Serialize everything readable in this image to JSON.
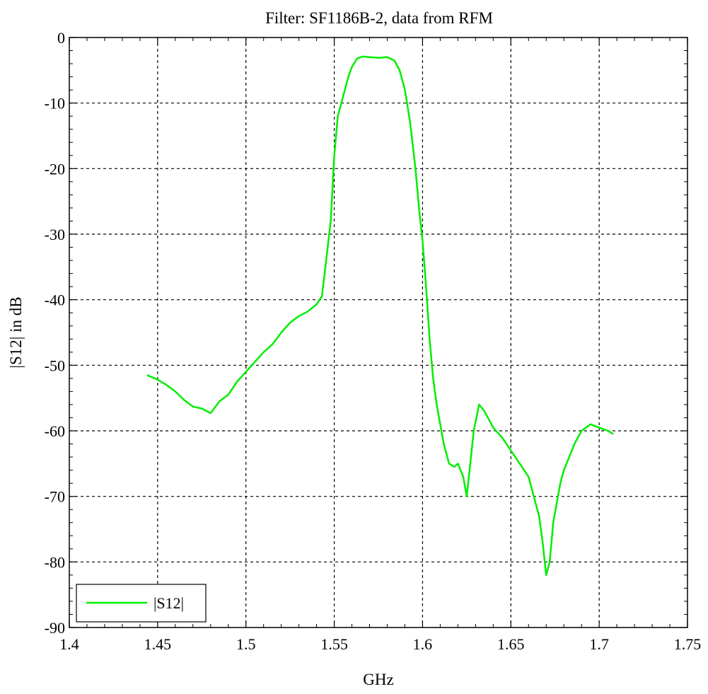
{
  "chart_data": {
    "type": "line",
    "title": "Filter: SF1186B-2, data from RFM",
    "xlabel": "GHz",
    "ylabel": "|S12| in dB",
    "xlim": [
      1.4,
      1.75
    ],
    "ylim": [
      -90,
      0
    ],
    "x_ticks": [
      1.4,
      1.45,
      1.5,
      1.55,
      1.6,
      1.65,
      1.7,
      1.75
    ],
    "x_tick_labels": [
      "1.4",
      "1.45",
      "1.5",
      "1.55",
      "1.6",
      "1.65",
      "1.7",
      "1.75"
    ],
    "y_ticks": [
      0,
      -10,
      -20,
      -30,
      -40,
      -50,
      -60,
      -70,
      -80,
      -90
    ],
    "y_tick_labels": [
      "0",
      "-10",
      "-20",
      "-30",
      "-40",
      "-50",
      "-60",
      "-70",
      "-80",
      "-90"
    ],
    "grid": true,
    "legend_position": "bottom-left",
    "series": [
      {
        "name": "|S12|",
        "color": "#00ee00",
        "x": [
          1.444,
          1.45,
          1.455,
          1.46,
          1.465,
          1.47,
          1.475,
          1.48,
          1.485,
          1.49,
          1.495,
          1.5,
          1.505,
          1.51,
          1.515,
          1.52,
          1.525,
          1.53,
          1.535,
          1.54,
          1.543,
          1.545,
          1.548,
          1.55,
          1.552,
          1.555,
          1.558,
          1.56,
          1.563,
          1.566,
          1.57,
          1.575,
          1.58,
          1.584,
          1.587,
          1.59,
          1.593,
          1.596,
          1.598,
          1.6,
          1.602,
          1.604,
          1.606,
          1.608,
          1.61,
          1.612,
          1.615,
          1.618,
          1.62,
          1.623,
          1.625,
          1.627,
          1.629,
          1.632,
          1.635,
          1.638,
          1.64,
          1.645,
          1.65,
          1.655,
          1.66,
          1.663,
          1.666,
          1.668,
          1.67,
          1.672,
          1.674,
          1.676,
          1.678,
          1.68,
          1.683,
          1.686,
          1.69,
          1.695,
          1.7,
          1.705,
          1.708
        ],
        "values": [
          -51.5,
          -52.2,
          -53,
          -54,
          -55.3,
          -56.3,
          -56.6,
          -57.3,
          -55.5,
          -54.5,
          -52.5,
          -51,
          -49.5,
          -48,
          -46.8,
          -45,
          -43.5,
          -42.5,
          -41.8,
          -40.7,
          -39.5,
          -35,
          -28,
          -18,
          -12,
          -9,
          -6,
          -4.5,
          -3.2,
          -2.9,
          -3,
          -3.1,
          -3,
          -3.5,
          -5,
          -8,
          -13,
          -20,
          -26,
          -31,
          -38,
          -46,
          -52,
          -56,
          -59,
          -62,
          -65,
          -65.5,
          -65,
          -67,
          -70,
          -65,
          -60,
          -56,
          -57,
          -58.5,
          -59.5,
          -61,
          -63,
          -65,
          -67,
          -70,
          -73,
          -77,
          -82,
          -80,
          -74,
          -71,
          -68,
          -66,
          -64,
          -62,
          -60,
          -59,
          -59.5,
          -60,
          -60.5
        ]
      }
    ],
    "legend": {
      "label": "|S12|"
    }
  }
}
